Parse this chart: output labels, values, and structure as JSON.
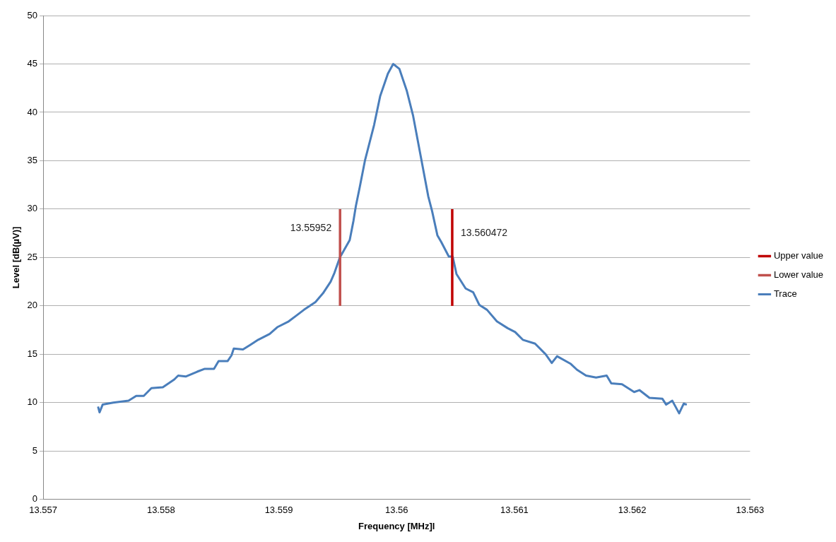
{
  "chart_data": {
    "type": "line",
    "xlabel": "Frequency [MHz]l",
    "ylabel": "Level [dB(µV)]",
    "xlim": [
      13.557,
      13.563
    ],
    "xticks": [
      13.557,
      13.558,
      13.559,
      13.56,
      13.561,
      13.562,
      13.563
    ],
    "ylim": [
      0,
      50
    ],
    "yticks": [
      0,
      5,
      10,
      15,
      20,
      25,
      30,
      35,
      40,
      45,
      50
    ],
    "grid": "y",
    "legend": "right",
    "marker": "none",
    "line_style": "solid",
    "series": [
      {
        "name": "Trace",
        "color": "#4a7ebb",
        "x": [
          13.557466,
          13.557479,
          13.557505,
          13.557595,
          13.557725,
          13.55779,
          13.557854,
          13.557919,
          13.558016,
          13.558113,
          13.558146,
          13.55821,
          13.558307,
          13.558372,
          13.55845,
          13.558489,
          13.558566,
          13.558599,
          13.558618,
          13.558696,
          13.558761,
          13.558825,
          13.558922,
          13.558987,
          13.559084,
          13.559149,
          13.559214,
          13.559311,
          13.559375,
          13.55944,
          13.559472,
          13.559518,
          13.559602,
          13.559634,
          13.559654,
          13.559686,
          13.559731,
          13.559809,
          13.559861,
          13.559926,
          13.559971,
          13.560023,
          13.560087,
          13.560139,
          13.560204,
          13.560269,
          13.560301,
          13.560346,
          13.560379,
          13.560443,
          13.560476,
          13.560508,
          13.560586,
          13.56065,
          13.560702,
          13.560767,
          13.560851,
          13.560942,
          13.561006,
          13.561071,
          13.561175,
          13.561265,
          13.561317,
          13.561362,
          13.561479,
          13.561531,
          13.561608,
          13.561693,
          13.561783,
          13.561822,
          13.561913,
          13.562016,
          13.562061,
          13.562146,
          13.562256,
          13.562288,
          13.56234,
          13.562398,
          13.562437,
          13.562463
        ],
        "values": [
          9.6,
          9.0,
          9.8,
          10.0,
          10.2,
          10.7,
          10.7,
          11.5,
          11.6,
          12.4,
          12.8,
          12.7,
          13.2,
          13.5,
          13.5,
          14.3,
          14.3,
          14.9,
          15.6,
          15.5,
          16.0,
          16.5,
          17.1,
          17.8,
          18.4,
          19.0,
          19.6,
          20.4,
          21.3,
          22.5,
          23.4,
          25.0,
          26.8,
          28.8,
          30.3,
          32.2,
          35.0,
          38.7,
          41.7,
          44.0,
          45.0,
          44.5,
          42.2,
          39.7,
          35.5,
          31.3,
          29.8,
          27.3,
          26.6,
          25.1,
          25.1,
          23.3,
          21.8,
          21.4,
          20.1,
          19.6,
          18.4,
          17.7,
          17.3,
          16.5,
          16.1,
          15.0,
          14.1,
          14.8,
          14.0,
          13.4,
          12.8,
          12.6,
          12.8,
          12.0,
          11.9,
          11.1,
          11.3,
          10.5,
          10.4,
          9.8,
          10.2,
          8.9,
          9.9,
          9.8
        ]
      },
      {
        "name": "Lower value",
        "color": "#c0504d",
        "x": [
          13.55952,
          13.55952
        ],
        "values": [
          20,
          30
        ]
      },
      {
        "name": "Upper value",
        "color": "#c00000",
        "x": [
          13.560472,
          13.560472
        ],
        "values": [
          20,
          30
        ]
      }
    ],
    "annotations": [
      {
        "text": "13.55952",
        "x": 13.55952,
        "y": 28
      },
      {
        "text": "13.560472",
        "x": 13.560472,
        "y": 27.5
      }
    ]
  }
}
